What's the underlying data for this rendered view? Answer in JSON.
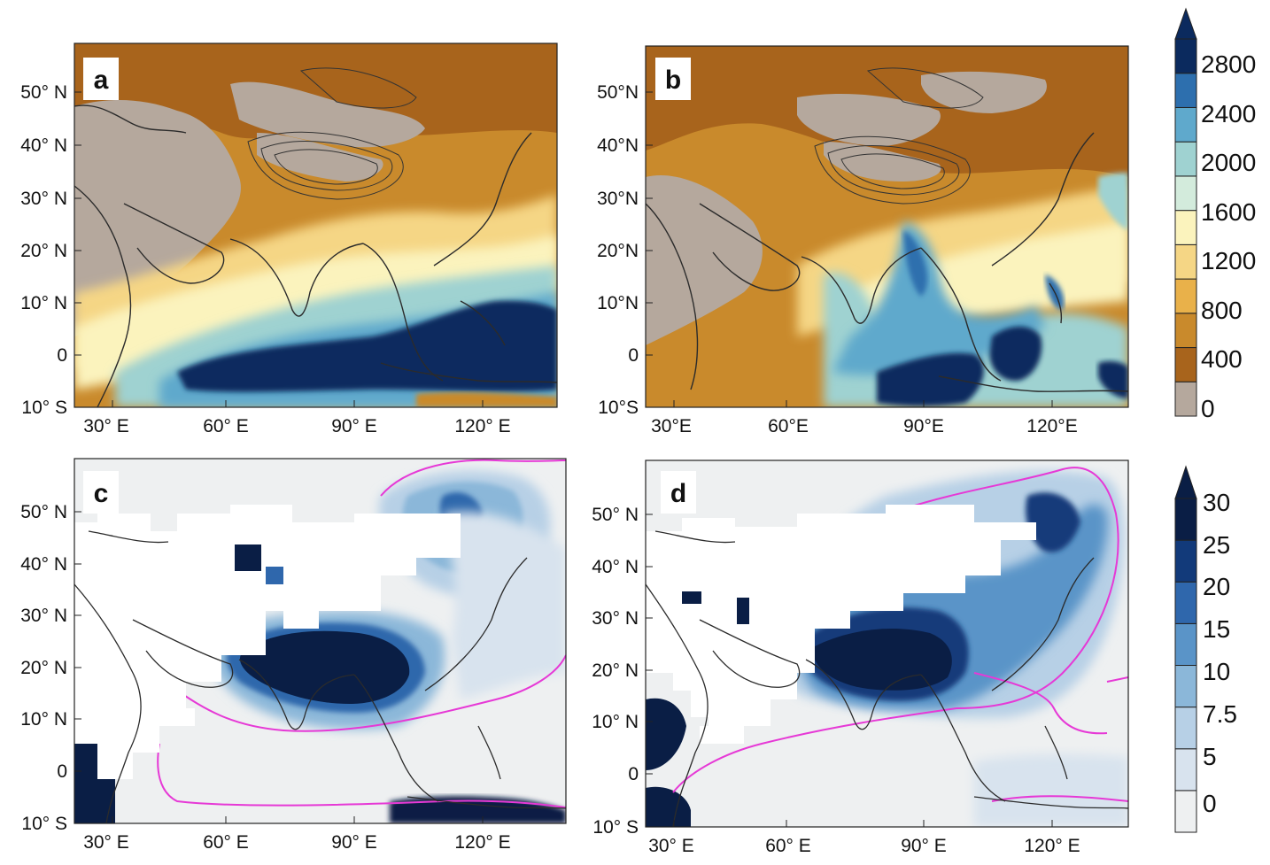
{
  "panels": [
    {
      "id": "a",
      "label": "a",
      "lat_labels": [
        "50° N",
        "40° N",
        "30° N",
        "20° N",
        "10° N",
        "0",
        "10° S"
      ],
      "lon_labels": [
        "30° E",
        "60° E",
        "90° E",
        "120° E"
      ],
      "variable": "precip_mm",
      "field_note": "orange-brown over arid interior, blue over equatorial Indian Ocean and Maritime Continent"
    },
    {
      "id": "b",
      "label": "b",
      "lat_labels": [
        "50°N",
        "40°N",
        "30°N",
        "20°N",
        "10°N",
        "0",
        "10°S"
      ],
      "lon_labels": [
        "30°E",
        "60°E",
        "90°E",
        "120°E"
      ],
      "variable": "precip_mm",
      "field_note": "similar pattern, wetter Bay of Bengal / SE Asia"
    },
    {
      "id": "c",
      "label": "c",
      "lat_labels": [
        "50° N",
        "40° N",
        "30° N",
        "20° N",
        "10° N",
        "0",
        "10° S"
      ],
      "lon_labels": [
        "30° E",
        "60° E",
        "90° E",
        "120° E"
      ],
      "variable": "percent",
      "field_note": "dark blue over Indian subcontinent and Indochina, white masked areas over arid land"
    },
    {
      "id": "d",
      "label": "d",
      "lat_labels": [
        "50° N",
        "40° N",
        "30° N",
        "20° N",
        "10° N",
        "0",
        "10° S"
      ],
      "lon_labels": [
        "30° E",
        "60° E",
        "90° E",
        "120° E"
      ],
      "variable": "percent",
      "field_note": "dark blue over Bay of Bengal, Arabian Sea and southern China"
    }
  ],
  "colorbar_top": {
    "labels": [
      "2800",
      "2400",
      "2000",
      "1600",
      "1200",
      "800",
      "400",
      "0"
    ],
    "colors": [
      "#b5a89d",
      "#a8641c",
      "#c98a2c",
      "#e9b14a",
      "#f5d685",
      "#fbf3bd",
      "#d3ebdc",
      "#9fd2d1",
      "#5fa9cc",
      "#2d6fae",
      "#0b2a5e"
    ],
    "extend": "max"
  },
  "colorbar_bottom": {
    "labels": [
      "30",
      "25",
      "20",
      "15",
      "10",
      "7.5",
      "5",
      "0"
    ],
    "colors": [
      "#eef0f1",
      "#d8e3ee",
      "#b7d0e6",
      "#8bb7d9",
      "#5a94c8",
      "#2f67ac",
      "#123a7a",
      "#0a1e45"
    ],
    "extend": "max"
  },
  "contour_color_bottom": "#e639d6",
  "mask_color": "#ffffff",
  "coast_color": "#2b2b2b"
}
